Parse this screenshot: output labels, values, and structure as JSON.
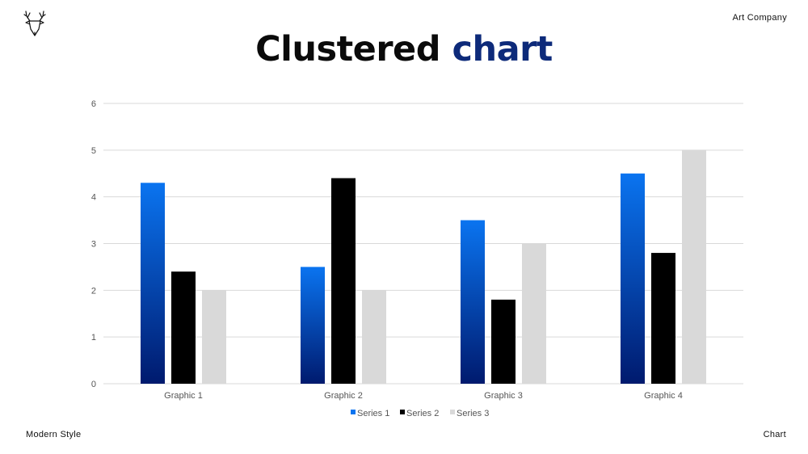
{
  "header": {
    "logo_icon": "deer-head-icon",
    "company": "Art Company",
    "title_main": "Clustered",
    "title_accent": "chart"
  },
  "footer": {
    "left": "Modern Style",
    "right": "Chart"
  },
  "colors": {
    "series1_top": "#0a74f0",
    "series1_bottom": "#001a6e",
    "series2": "#000000",
    "series3": "#d9d9d9",
    "title_accent": "#0d2a7a",
    "grid": "#d9d9d9"
  },
  "chart_data": {
    "type": "bar",
    "categories": [
      "Graphic 1",
      "Graphic 2",
      "Graphic 3",
      "Graphic 4"
    ],
    "series": [
      {
        "name": "Series 1",
        "values": [
          4.3,
          2.5,
          3.5,
          4.5
        ]
      },
      {
        "name": "Series 2",
        "values": [
          2.4,
          4.4,
          1.8,
          2.8
        ]
      },
      {
        "name": "Series 3",
        "values": [
          2.0,
          2.0,
          3.0,
          5.0
        ]
      }
    ],
    "yticks": [
      "0",
      "1",
      "2",
      "3",
      "4",
      "5",
      "6"
    ],
    "ylim": [
      0,
      6
    ],
    "grid": true,
    "legend": "bottom"
  }
}
